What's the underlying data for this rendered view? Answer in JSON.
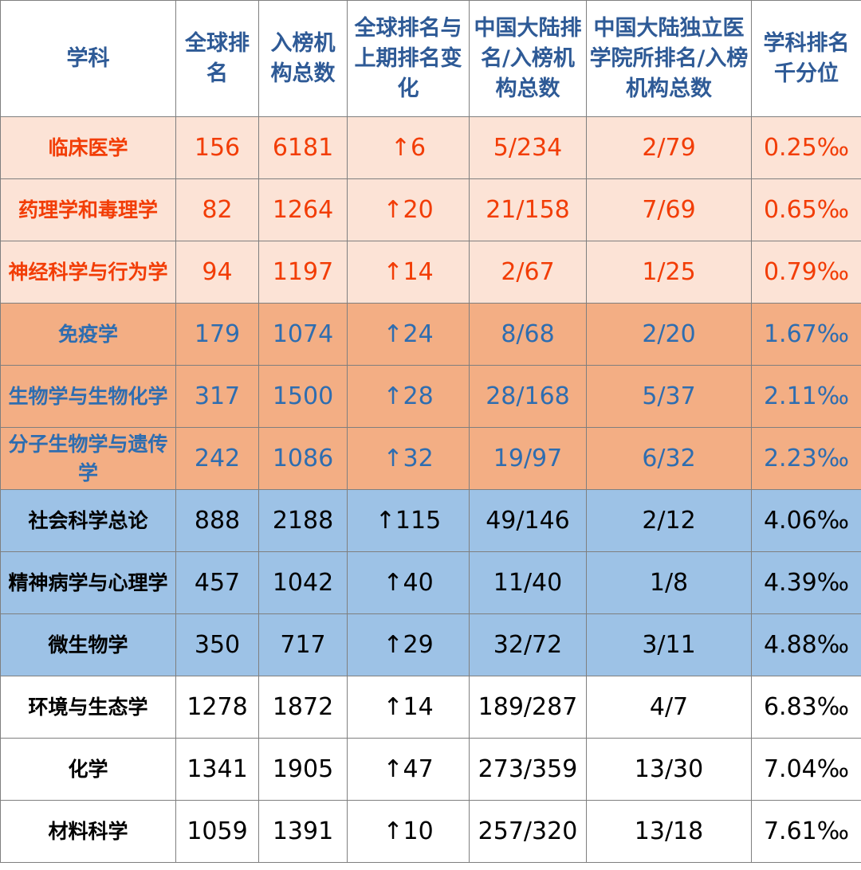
{
  "headers": [
    "学科",
    "全球排名",
    "入榜机构总数",
    "全球排名与上期排名变化",
    "中国大陆排名/入榜机构总数",
    "中国大陆独立医学院所排名/入榜机构总数",
    "学科排名千分位"
  ],
  "rows": [
    {
      "subject": "临床医学",
      "global_rank": "156",
      "institutions": "6181",
      "change": "↑6",
      "china_rank": "5/234",
      "medical_rank": "2/79",
      "permille": "0.25‰"
    },
    {
      "subject": "药理学和毒理学",
      "global_rank": "82",
      "institutions": "1264",
      "change": "↑20",
      "china_rank": "21/158",
      "medical_rank": "7/69",
      "permille": "0.65‰"
    },
    {
      "subject": "神经科学与行为学",
      "global_rank": "94",
      "institutions": "1197",
      "change": "↑14",
      "china_rank": "2/67",
      "medical_rank": "1/25",
      "permille": "0.79‰"
    },
    {
      "subject": "免疫学",
      "global_rank": "179",
      "institutions": "1074",
      "change": "↑24",
      "china_rank": "8/68",
      "medical_rank": "2/20",
      "permille": "1.67‰"
    },
    {
      "subject": "生物学与生物化学",
      "global_rank": "317",
      "institutions": "1500",
      "change": "↑28",
      "china_rank": "28/168",
      "medical_rank": "5/37",
      "permille": "2.11‰"
    },
    {
      "subject": "分子生物学与遗传学",
      "global_rank": "242",
      "institutions": "1086",
      "change": "↑32",
      "china_rank": "19/97",
      "medical_rank": "6/32",
      "permille": "2.23‰"
    },
    {
      "subject": "社会科学总论",
      "global_rank": "888",
      "institutions": "2188",
      "change": "↑115",
      "china_rank": "49/146",
      "medical_rank": "2/12",
      "permille": "4.06‰"
    },
    {
      "subject": "精神病学与心理学",
      "global_rank": "457",
      "institutions": "1042",
      "change": "↑40",
      "china_rank": "11/40",
      "medical_rank": "1/8",
      "permille": "4.39‰"
    },
    {
      "subject": "微生物学",
      "global_rank": "350",
      "institutions": "717",
      "change": "↑29",
      "china_rank": "32/72",
      "medical_rank": "3/11",
      "permille": "4.88‰"
    },
    {
      "subject": "环境与生态学",
      "global_rank": "1278",
      "institutions": "1872",
      "change": "↑14",
      "china_rank": "189/287",
      "medical_rank": "4/7",
      "permille": "6.83‰"
    },
    {
      "subject": "化学",
      "global_rank": "1341",
      "institutions": "1905",
      "change": "↑47",
      "china_rank": "273/359",
      "medical_rank": "13/30",
      "permille": "7.04‰"
    },
    {
      "subject": "材料科学",
      "global_rank": "1059",
      "institutions": "1391",
      "change": "↑10",
      "china_rank": "257/320",
      "medical_rank": "13/18",
      "permille": "7.61‰"
    }
  ],
  "group_colors": {
    "g1_bg": "#fce3d6",
    "g1_text": "#f23d06",
    "g2_bg": "#f3ae84",
    "g2_text": "#2e6db0",
    "g3_bg": "#9dc2e6",
    "g4_bg": "#ffffff",
    "header_text": "#2e5a96"
  }
}
